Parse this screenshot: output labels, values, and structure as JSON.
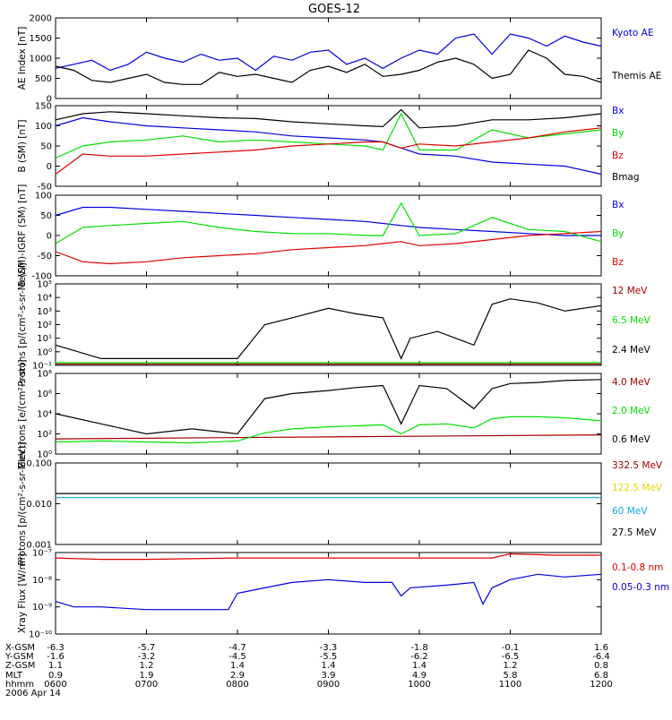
{
  "title": "GOES-12",
  "date": "2006 Apr 14",
  "colors": {
    "blue": "#0000e0",
    "black": "#000000",
    "green": "#00e000",
    "red": "#e00000",
    "darkred": "#a00000",
    "yellow": "#e8d800",
    "cyan": "#10a8d8"
  },
  "time_axis": {
    "ticks": [
      "0600",
      "0700",
      "0800",
      "0900",
      "1000",
      "1100",
      "1200"
    ],
    "rows": [
      {
        "label": "X-GSM",
        "values": [
          "-6.3",
          "-5.7",
          "-4.7",
          "-3.3",
          "-1.8",
          "-0.1",
          "1.6"
        ]
      },
      {
        "label": "Y-GSM",
        "values": [
          "-1.6",
          "-3.2",
          "-4.5",
          "-5.5",
          "-6.2",
          "-6.5",
          "-6.4"
        ]
      },
      {
        "label": "Z-GSM",
        "values": [
          "1.1",
          "1.2",
          "1.4",
          "1.4",
          "1.4",
          "1.2",
          "0.8"
        ]
      },
      {
        "label": "MLT",
        "values": [
          "0.9",
          "1.9",
          "2.9",
          "3.9",
          "4.9",
          "5.8",
          "6.8"
        ]
      },
      {
        "label": "hhmm",
        "values": [
          "0600",
          "0700",
          "0800",
          "0900",
          "1000",
          "1100",
          "1200"
        ]
      }
    ]
  },
  "chart_data": [
    {
      "type": "line",
      "ylabel": "AE Index [nT]",
      "yscale": "linear",
      "ylim": [
        0,
        2000
      ],
      "yticks": [
        "0",
        "500",
        "1000",
        "1500",
        "2000"
      ],
      "series": [
        {
          "name": "Kyoto AE",
          "color": "blue",
          "x": [
            6.0,
            6.2,
            6.4,
            6.6,
            6.8,
            7.0,
            7.2,
            7.4,
            7.6,
            7.8,
            8.0,
            8.2,
            8.4,
            8.6,
            8.8,
            9.0,
            9.2,
            9.4,
            9.6,
            9.8,
            10.0,
            10.2,
            10.4,
            10.6,
            10.8,
            11.0,
            11.2,
            11.4,
            11.6,
            11.8,
            12.0
          ],
          "y": [
            750,
            850,
            950,
            700,
            850,
            1150,
            1000,
            900,
            1100,
            950,
            1000,
            700,
            1050,
            950,
            1150,
            1200,
            850,
            1000,
            750,
            1000,
            1200,
            1100,
            1500,
            1600,
            1100,
            1600,
            1500,
            1300,
            1550,
            1400,
            1300
          ]
        },
        {
          "name": "Themis AE",
          "color": "black",
          "x": [
            6.0,
            6.2,
            6.4,
            6.6,
            6.8,
            7.0,
            7.2,
            7.4,
            7.6,
            7.8,
            8.0,
            8.2,
            8.4,
            8.6,
            8.8,
            9.0,
            9.2,
            9.4,
            9.6,
            9.8,
            10.0,
            10.2,
            10.4,
            10.6,
            10.8,
            11.0,
            11.2,
            11.4,
            11.6,
            11.8,
            12.0
          ],
          "y": [
            800,
            700,
            450,
            400,
            500,
            600,
            400,
            350,
            350,
            650,
            550,
            600,
            500,
            400,
            700,
            800,
            650,
            850,
            550,
            600,
            700,
            900,
            1000,
            850,
            500,
            600,
            1200,
            1000,
            600,
            550,
            400
          ]
        }
      ]
    },
    {
      "type": "line",
      "ylabel": "B (SM) [nT]",
      "yscale": "linear",
      "ylim": [
        -50,
        150
      ],
      "yticks": [
        "-50",
        "0",
        "50",
        "100",
        "150"
      ],
      "series": [
        {
          "name": "Bx",
          "color": "blue",
          "x": [
            6.0,
            6.3,
            6.6,
            7.0,
            7.4,
            7.8,
            8.2,
            8.6,
            9.0,
            9.4,
            9.6,
            9.8,
            10.0,
            10.4,
            10.8,
            11.2,
            11.6,
            12.0
          ],
          "y": [
            100,
            120,
            110,
            100,
            95,
            90,
            85,
            75,
            70,
            65,
            60,
            45,
            30,
            25,
            10,
            5,
            0,
            -20
          ]
        },
        {
          "name": "By",
          "color": "green",
          "x": [
            6.0,
            6.3,
            6.6,
            7.0,
            7.4,
            7.8,
            8.2,
            8.6,
            9.0,
            9.4,
            9.6,
            9.8,
            10.0,
            10.4,
            10.8,
            11.2,
            11.6,
            12.0
          ],
          "y": [
            20,
            50,
            60,
            65,
            75,
            60,
            65,
            60,
            55,
            50,
            40,
            130,
            40,
            40,
            90,
            70,
            80,
            90
          ]
        },
        {
          "name": "Bz",
          "color": "red",
          "x": [
            6.0,
            6.3,
            6.6,
            7.0,
            7.4,
            7.8,
            8.2,
            8.6,
            9.0,
            9.4,
            9.6,
            9.8,
            10.0,
            10.4,
            10.8,
            11.2,
            11.6,
            12.0
          ],
          "y": [
            -20,
            30,
            25,
            25,
            30,
            35,
            40,
            50,
            55,
            60,
            60,
            45,
            55,
            50,
            60,
            70,
            85,
            95
          ]
        },
        {
          "name": "Bmag",
          "color": "black",
          "x": [
            6.0,
            6.3,
            6.6,
            7.0,
            7.4,
            7.8,
            8.2,
            8.6,
            9.0,
            9.4,
            9.6,
            9.8,
            10.0,
            10.4,
            10.8,
            11.2,
            11.6,
            12.0
          ],
          "y": [
            115,
            130,
            135,
            130,
            125,
            120,
            118,
            110,
            105,
            100,
            98,
            140,
            95,
            100,
            115,
            115,
            120,
            130
          ]
        }
      ]
    },
    {
      "type": "line",
      "ylabel": "B (SM)-IGRF (SM) [nT]",
      "yscale": "linear",
      "ylim": [
        -100,
        100
      ],
      "yticks": [
        "-100",
        "-50",
        "0",
        "50",
        "100"
      ],
      "series": [
        {
          "name": "Bx",
          "color": "blue",
          "x": [
            6.0,
            6.3,
            6.6,
            7.0,
            7.4,
            7.8,
            8.2,
            8.6,
            9.0,
            9.4,
            9.6,
            9.8,
            10.0,
            10.4,
            10.8,
            11.2,
            11.6,
            12.0
          ],
          "y": [
            50,
            70,
            70,
            65,
            60,
            55,
            50,
            45,
            40,
            35,
            30,
            25,
            20,
            15,
            10,
            5,
            0,
            0
          ]
        },
        {
          "name": "By",
          "color": "green",
          "x": [
            6.0,
            6.3,
            6.6,
            7.0,
            7.4,
            7.8,
            8.2,
            8.6,
            9.0,
            9.4,
            9.6,
            9.8,
            10.0,
            10.4,
            10.8,
            11.2,
            11.6,
            12.0
          ],
          "y": [
            -20,
            20,
            25,
            30,
            35,
            20,
            10,
            5,
            5,
            0,
            0,
            80,
            0,
            5,
            45,
            15,
            10,
            -15
          ]
        },
        {
          "name": "Bz",
          "color": "red",
          "x": [
            6.0,
            6.3,
            6.6,
            7.0,
            7.4,
            7.8,
            8.2,
            8.6,
            9.0,
            9.4,
            9.6,
            9.8,
            10.0,
            10.4,
            10.8,
            11.2,
            11.6,
            12.0
          ],
          "y": [
            -40,
            -65,
            -70,
            -65,
            -55,
            -50,
            -45,
            -35,
            -30,
            -25,
            -20,
            -15,
            -25,
            -20,
            -10,
            0,
            5,
            10
          ]
        }
      ]
    },
    {
      "type": "line",
      "ylabel": "Protons [p/(cm²-s-sr-MeV)]",
      "yscale": "log",
      "ylim": [
        -1,
        5
      ],
      "yticks": [
        "10⁻¹",
        "10⁰",
        "10¹",
        "10²",
        "10³",
        "10⁴",
        "10⁵"
      ],
      "series": [
        {
          "name": "12 MeV",
          "color": "darkred",
          "x": [
            6.0,
            12.0
          ],
          "y": [
            -0.9,
            -0.9
          ]
        },
        {
          "name": "6.5 MeV",
          "color": "green",
          "x": [
            6.0,
            12.0
          ],
          "y": [
            -0.8,
            -0.8
          ]
        },
        {
          "name": "2.4 MeV",
          "color": "black",
          "x": [
            6.0,
            6.5,
            7.0,
            7.5,
            8.0,
            8.3,
            8.6,
            9.0,
            9.3,
            9.6,
            9.8,
            9.9,
            10.2,
            10.6,
            10.8,
            11.0,
            11.3,
            11.6,
            12.0
          ],
          "y": [
            0.5,
            -0.5,
            -0.5,
            -0.5,
            -0.5,
            2.0,
            2.5,
            3.2,
            2.8,
            2.5,
            -0.5,
            1.0,
            1.5,
            0.5,
            3.5,
            3.9,
            3.6,
            3.0,
            3.4
          ]
        }
      ]
    },
    {
      "type": "line",
      "ylabel": "Electrons [e/(cm²-s-sr)]",
      "yscale": "log",
      "ylim": [
        0,
        8
      ],
      "yticks": [
        "10⁰",
        "10²",
        "10⁴",
        "10⁶",
        "10⁸"
      ],
      "series": [
        {
          "name": "4.0 MeV",
          "color": "darkred",
          "x": [
            6.0,
            12.0
          ],
          "y": [
            1.5,
            1.9
          ]
        },
        {
          "name": "2.0 MeV",
          "color": "green",
          "x": [
            6.0,
            6.5,
            7.0,
            7.5,
            8.0,
            8.3,
            8.6,
            9.0,
            9.3,
            9.6,
            9.8,
            10.0,
            10.3,
            10.6,
            10.8,
            11.0,
            11.3,
            11.6,
            12.0
          ],
          "y": [
            1.2,
            1.3,
            1.2,
            1.1,
            1.3,
            2.1,
            2.5,
            2.7,
            2.8,
            2.9,
            2.0,
            2.9,
            3.0,
            2.6,
            3.5,
            3.7,
            3.7,
            3.6,
            3.3
          ]
        },
        {
          "name": "0.6 MeV",
          "color": "black",
          "x": [
            6.0,
            6.5,
            7.0,
            7.5,
            8.0,
            8.3,
            8.6,
            9.0,
            9.3,
            9.6,
            9.8,
            10.0,
            10.3,
            10.6,
            10.8,
            11.0,
            11.3,
            11.6,
            12.0
          ],
          "y": [
            4.0,
            3.0,
            2.0,
            2.5,
            2.0,
            5.5,
            6.0,
            6.3,
            6.6,
            6.8,
            3.0,
            6.8,
            6.5,
            4.5,
            6.5,
            7.0,
            7.1,
            7.3,
            7.4
          ]
        }
      ]
    },
    {
      "type": "line",
      "ylabel": "Protons [p/(cm²-s-sr-MeV)]",
      "yscale": "log",
      "ylim": [
        -3,
        -1
      ],
      "yticks": [
        "0.001",
        "0.010",
        "0.100"
      ],
      "series": [
        {
          "name": "332.5 MeV",
          "color": "darkred",
          "x": [],
          "y": []
        },
        {
          "name": "122.5 MeV",
          "color": "yellow",
          "x": [],
          "y": []
        },
        {
          "name": "60 MeV",
          "color": "cyan",
          "x": [
            6.0,
            7.0,
            8.0,
            9.0,
            10.0,
            11.0,
            12.0
          ],
          "y": [
            -1.85,
            -1.85,
            -1.85,
            -1.85,
            -1.85,
            -1.85,
            -1.85
          ]
        },
        {
          "name": "27.5 MeV",
          "color": "black",
          "x": [
            6.0,
            7.0,
            8.0,
            9.0,
            10.0,
            11.0,
            12.0
          ],
          "y": [
            -1.75,
            -1.75,
            -1.75,
            -1.75,
            -1.75,
            -1.75,
            -1.75
          ]
        }
      ]
    },
    {
      "type": "line",
      "ylabel": "Xray Flux [W/m²]",
      "yscale": "log",
      "ylim": [
        -10,
        -7
      ],
      "yticks": [
        "10⁻¹⁰",
        "10⁻⁹",
        "10⁻⁸",
        "10⁻⁷"
      ],
      "series": [
        {
          "name": "0.1-0.8 nm",
          "color": "red",
          "x": [
            6.0,
            6.5,
            7.0,
            8.0,
            9.0,
            10.0,
            10.8,
            11.0,
            11.5,
            12.0
          ],
          "y": [
            -7.2,
            -7.25,
            -7.25,
            -7.2,
            -7.2,
            -7.2,
            -7.2,
            -7.05,
            -7.1,
            -7.1
          ]
        },
        {
          "name": "0.05-0.3 nm",
          "color": "blue",
          "x": [
            6.0,
            6.2,
            6.5,
            7.0,
            7.5,
            7.9,
            8.0,
            8.3,
            8.6,
            9.0,
            9.4,
            9.7,
            9.8,
            9.9,
            10.3,
            10.6,
            10.7,
            10.8,
            11.0,
            11.3,
            11.6,
            12.0
          ],
          "y": [
            -8.8,
            -9.0,
            -9.0,
            -9.1,
            -9.1,
            -9.1,
            -8.5,
            -8.3,
            -8.1,
            -8.0,
            -8.1,
            -8.1,
            -8.6,
            -8.3,
            -8.2,
            -8.1,
            -8.9,
            -8.3,
            -8.0,
            -7.8,
            -7.9,
            -7.8
          ]
        }
      ]
    }
  ]
}
